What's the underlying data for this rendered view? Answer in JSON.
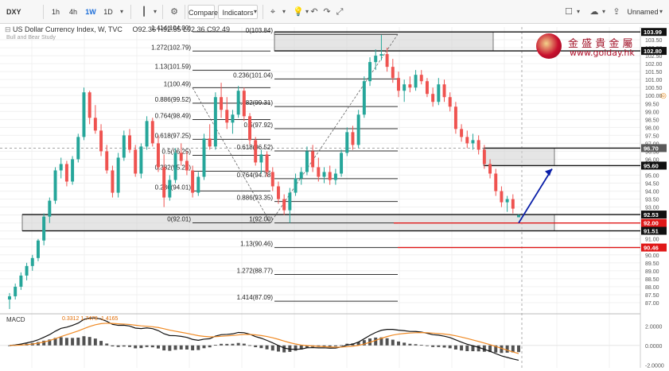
{
  "toolbar": {
    "symbol": "DXY",
    "intervals": [
      "1h",
      "4h",
      "1W",
      "1D"
    ],
    "active_interval": "1W",
    "compare_label": "Compare",
    "indicators_label": "Indicators",
    "layout_name": "Unnamed"
  },
  "legend": {
    "title": "US Dollar Currency Index, W, TVC",
    "ohlc": "O92.36 H92.55 L92.36 C92.49",
    "sub": "Bull and Bear Study"
  },
  "watermark": {
    "chinese": "金 盛 貴 金 屬",
    "url": "www.golday.hk"
  },
  "chart_data": {
    "type": "candlestick",
    "ylim": [
      86.4,
      104.3
    ],
    "y_ticks": [
      87.0,
      87.5,
      88.0,
      88.5,
      89.0,
      89.5,
      90.0,
      90.5,
      91.0,
      91.5,
      92.0,
      92.5,
      93.0,
      93.5,
      94.0,
      94.5,
      95.0,
      95.5,
      96.0,
      96.5,
      97.0,
      97.5,
      98.0,
      98.5,
      99.0,
      99.5,
      100.0,
      100.5,
      101.0,
      101.5,
      102.0,
      102.5,
      103.0,
      103.5
    ],
    "y_tick_labels": [
      "87.00",
      "87.50",
      "88.00",
      "88.50",
      "89.00",
      "89.50",
      "90.00",
      "90.50",
      "91.00",
      "91.50",
      "92.00",
      "92.50",
      "93.00",
      "93.50",
      "94.00",
      "94.50",
      "95.00",
      "95.50",
      "96.00",
      "96.50",
      "97.00",
      "97.50",
      "98.00",
      "98.50",
      "99.00",
      "99.50",
      "100.00",
      "100.50",
      "101.00",
      "101.50",
      "102.00",
      "102.50",
      "103.00",
      "103.50"
    ],
    "price_tags": [
      {
        "value": 103.99,
        "label": "103.99",
        "style": "dark"
      },
      {
        "value": 102.8,
        "label": "102.80",
        "style": "dark"
      },
      {
        "value": 96.7,
        "label": "96.70",
        "style": "grey"
      },
      {
        "value": 95.6,
        "label": "95.60",
        "style": "dark"
      },
      {
        "value": 92.53,
        "label": "92.53",
        "style": "dark"
      },
      {
        "value": 92.0,
        "label": "92.00",
        "style": "red"
      },
      {
        "value": 91.51,
        "label": "91.51",
        "style": "dark"
      },
      {
        "value": 90.46,
        "label": "90.46",
        "style": "red"
      }
    ],
    "fib_set_1": [
      {
        "label": "1.414(104.00)",
        "value": 104.0
      },
      {
        "label": "1.272(102.79)",
        "value": 102.79
      },
      {
        "label": "1.13(101.59)",
        "value": 101.59
      },
      {
        "label": "1(100.49)",
        "value": 100.49
      },
      {
        "label": "0.886(99.52)",
        "value": 99.52
      },
      {
        "label": "0.764(98.49)",
        "value": 98.49
      },
      {
        "label": "0.618(97.25)",
        "value": 97.25
      },
      {
        "label": "0.5(96.25)",
        "value": 96.25
      },
      {
        "label": "0.382(95.25)",
        "value": 95.25
      },
      {
        "label": "0.236(94.01)",
        "value": 94.01
      },
      {
        "label": "0(92.01)",
        "value": 92.01
      }
    ],
    "fib_set_2": [
      {
        "label": "0(103.84)",
        "value": 103.84
      },
      {
        "label": "0.236(101.04)",
        "value": 101.04
      },
      {
        "label": "0.382(99.31)",
        "value": 99.31
      },
      {
        "label": "0.5(97.92)",
        "value": 97.92
      },
      {
        "label": "0.618(96.52)",
        "value": 96.52
      },
      {
        "label": "0.764(94.78)",
        "value": 94.78
      },
      {
        "label": "0.886(93.35)",
        "value": 93.35
      },
      {
        "label": "1(92.00)",
        "value": 92.0
      },
      {
        "label": "1.13(90.46)",
        "value": 90.46
      },
      {
        "label": "1.272(88.77)",
        "value": 88.77
      },
      {
        "label": "1.414(87.09)",
        "value": 87.09
      }
    ],
    "zones": [
      {
        "from": 102.8,
        "to": 103.99
      },
      {
        "from": 95.6,
        "to": 96.7
      },
      {
        "from": 91.51,
        "to": 92.53
      }
    ],
    "red_levels": [
      92.0,
      90.46
    ],
    "candles": [
      [
        87.2,
        87.6,
        86.6,
        87.4
      ],
      [
        87.4,
        88.2,
        87.2,
        88.0
      ],
      [
        88.0,
        88.9,
        87.8,
        88.7
      ],
      [
        88.7,
        89.5,
        88.4,
        89.3
      ],
      [
        89.3,
        90.0,
        89.0,
        89.8
      ],
      [
        89.8,
        91.0,
        89.6,
        90.9
      ],
      [
        90.9,
        92.6,
        90.6,
        92.4
      ],
      [
        92.4,
        93.6,
        92.0,
        93.4
      ],
      [
        93.4,
        95.5,
        93.2,
        95.3
      ],
      [
        95.3,
        96.1,
        94.8,
        95.7
      ],
      [
        95.7,
        95.9,
        94.3,
        94.6
      ],
      [
        94.6,
        96.2,
        94.4,
        96.0
      ],
      [
        96.0,
        97.6,
        95.8,
        97.4
      ],
      [
        97.4,
        100.5,
        97.2,
        100.2
      ],
      [
        100.2,
        100.3,
        98.2,
        98.6
      ],
      [
        98.6,
        99.4,
        97.6,
        97.8
      ],
      [
        97.8,
        98.2,
        96.2,
        96.5
      ],
      [
        96.5,
        96.9,
        95.1,
        95.3
      ],
      [
        95.3,
        95.6,
        93.6,
        93.9
      ],
      [
        93.9,
        96.4,
        93.6,
        96.1
      ],
      [
        96.1,
        97.8,
        95.9,
        97.5
      ],
      [
        97.5,
        97.9,
        96.4,
        96.6
      ],
      [
        96.6,
        96.9,
        94.9,
        95.1
      ],
      [
        95.1,
        97.0,
        94.8,
        96.8
      ],
      [
        96.8,
        98.7,
        96.6,
        98.4
      ],
      [
        98.4,
        98.6,
        96.8,
        97.0
      ],
      [
        97.0,
        97.5,
        95.2,
        95.5
      ],
      [
        95.5,
        96.3,
        93.0,
        93.6
      ],
      [
        93.6,
        95.0,
        93.4,
        94.7
      ],
      [
        94.7,
        96.7,
        94.5,
        96.4
      ],
      [
        96.4,
        97.0,
        95.6,
        95.9
      ],
      [
        95.9,
        96.5,
        95.0,
        95.3
      ],
      [
        95.3,
        95.6,
        93.6,
        93.9
      ],
      [
        93.9,
        95.2,
        93.7,
        94.9
      ],
      [
        94.9,
        97.6,
        94.7,
        97.3
      ],
      [
        97.3,
        98.2,
        96.6,
        96.8
      ],
      [
        96.8,
        100.2,
        96.6,
        99.9
      ],
      [
        99.9,
        100.8,
        98.6,
        99.1
      ],
      [
        99.1,
        99.9,
        97.9,
        98.3
      ],
      [
        98.3,
        99.1,
        97.6,
        98.8
      ],
      [
        98.8,
        100.6,
        98.6,
        100.3
      ],
      [
        100.3,
        100.5,
        98.4,
        98.7
      ],
      [
        98.7,
        98.9,
        96.9,
        97.2
      ],
      [
        97.2,
        97.4,
        95.6,
        95.8
      ],
      [
        95.8,
        96.6,
        95.1,
        96.3
      ],
      [
        96.3,
        96.5,
        94.9,
        95.2
      ],
      [
        95.2,
        95.5,
        94.0,
        94.3
      ],
      [
        94.3,
        94.6,
        93.2,
        93.5
      ],
      [
        93.5,
        93.8,
        92.5,
        92.8
      ],
      [
        92.8,
        94.2,
        92.0,
        93.9
      ],
      [
        93.9,
        95.1,
        93.7,
        94.8
      ],
      [
        94.8,
        95.5,
        94.4,
        95.2
      ],
      [
        95.2,
        96.8,
        95.0,
        96.5
      ],
      [
        96.5,
        96.9,
        95.2,
        95.5
      ],
      [
        95.5,
        96.1,
        94.6,
        94.9
      ],
      [
        94.9,
        95.5,
        94.5,
        95.2
      ],
      [
        95.2,
        95.6,
        94.4,
        94.7
      ],
      [
        94.7,
        95.4,
        94.4,
        95.1
      ],
      [
        95.1,
        96.6,
        94.9,
        96.4
      ],
      [
        96.4,
        98.0,
        96.2,
        97.7
      ],
      [
        97.7,
        98.1,
        96.6,
        96.9
      ],
      [
        96.9,
        99.1,
        96.7,
        98.8
      ],
      [
        98.8,
        101.2,
        98.6,
        100.9
      ],
      [
        100.9,
        102.4,
        100.6,
        102.1
      ],
      [
        102.1,
        102.9,
        101.6,
        102.5
      ],
      [
        102.5,
        103.8,
        102.2,
        102.6
      ],
      [
        102.6,
        103.0,
        101.5,
        101.8
      ],
      [
        101.8,
        102.3,
        100.8,
        101.1
      ],
      [
        101.1,
        101.5,
        99.9,
        100.3
      ],
      [
        100.3,
        101.0,
        99.6,
        100.7
      ],
      [
        100.7,
        101.2,
        100.2,
        100.5
      ],
      [
        100.5,
        101.6,
        100.3,
        101.3
      ],
      [
        101.3,
        101.6,
        100.7,
        100.9
      ],
      [
        100.9,
        101.1,
        99.9,
        100.1
      ],
      [
        100.1,
        100.5,
        99.3,
        99.6
      ],
      [
        99.6,
        101.1,
        99.4,
        100.7
      ],
      [
        100.7,
        101.0,
        99.6,
        99.9
      ],
      [
        99.9,
        100.2,
        99.0,
        99.3
      ],
      [
        99.3,
        99.6,
        97.6,
        97.9
      ],
      [
        97.9,
        98.2,
        97.1,
        97.4
      ],
      [
        97.4,
        97.8,
        96.7,
        97.0
      ],
      [
        97.0,
        97.6,
        96.6,
        97.2
      ],
      [
        97.2,
        97.5,
        96.3,
        96.6
      ],
      [
        96.6,
        96.9,
        95.4,
        95.7
      ],
      [
        95.7,
        96.0,
        94.8,
        95.1
      ],
      [
        95.1,
        95.4,
        93.7,
        94.0
      ],
      [
        94.0,
        94.3,
        93.0,
        93.3
      ],
      [
        93.3,
        93.7,
        92.7,
        93.5
      ],
      [
        93.5,
        93.8,
        92.6,
        92.9
      ],
      [
        92.36,
        92.55,
        92.36,
        92.49
      ]
    ],
    "macd": {
      "label": "MACD",
      "values_text": "0.3312  1.7478  -1.4165",
      "y_ticks": [
        2.0,
        0.0,
        -2.0
      ],
      "y_tick_labels": [
        "2.0000",
        "0.0000",
        "-2.0000"
      ]
    }
  }
}
